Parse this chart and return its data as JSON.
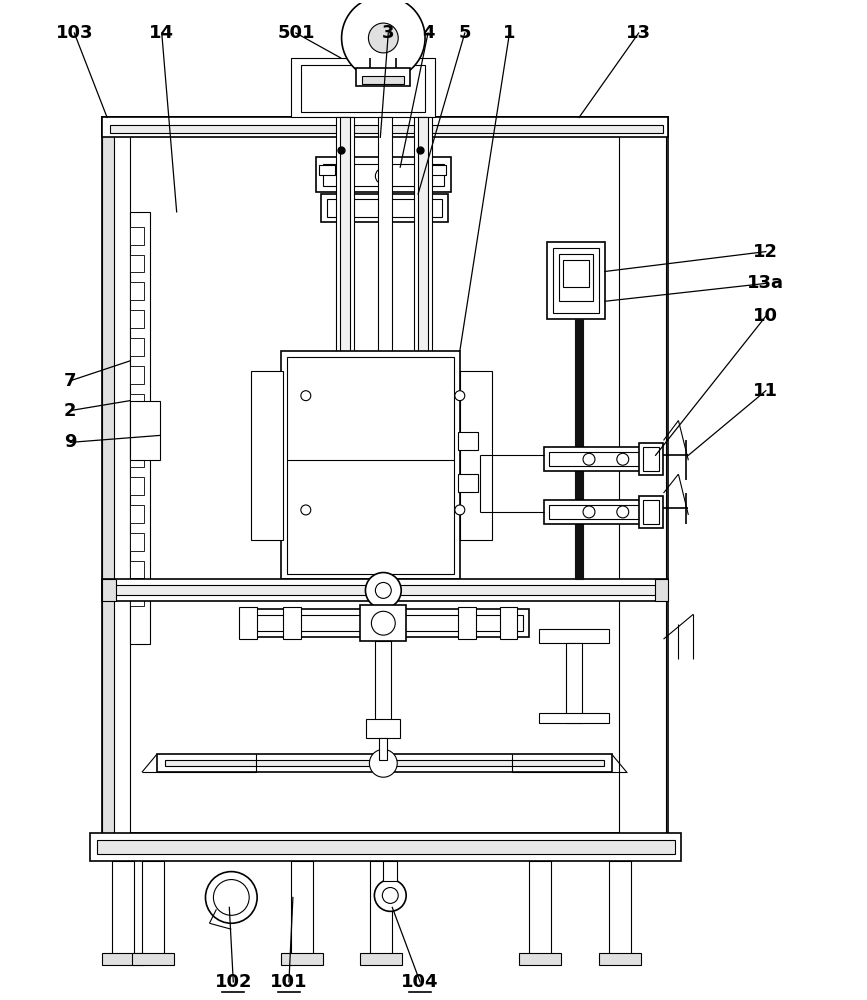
{
  "bg_color": "#ffffff",
  "lc": "#000000",
  "gc": "#555555",
  "figsize": [
    8.67,
    10.0
  ],
  "dpi": 100
}
